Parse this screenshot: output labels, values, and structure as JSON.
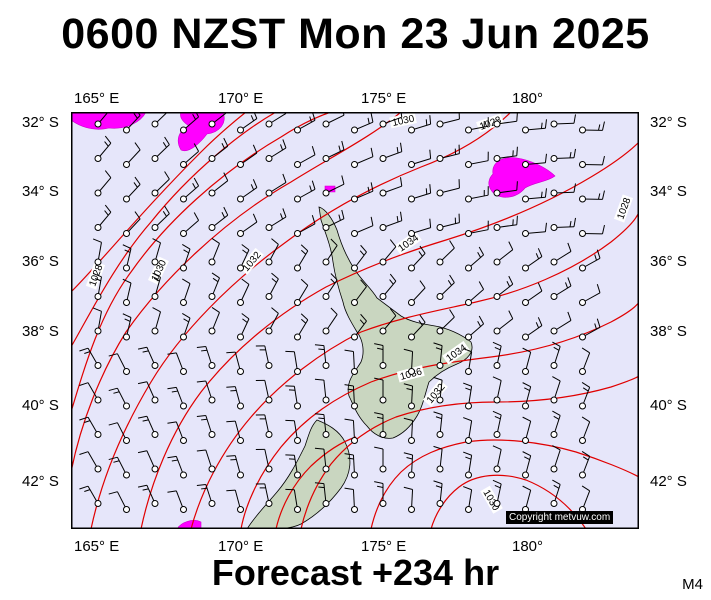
{
  "header": {
    "title": "0600 NZST Mon 23 Jun 2025"
  },
  "footer": {
    "subtitle": "Forecast +234 hr",
    "model": "M4"
  },
  "map": {
    "lon_labels": [
      "165° E",
      "170° E",
      "175° E",
      "180°"
    ],
    "lat_labels": [
      "32° S",
      "34° S",
      "36° S",
      "38° S",
      "40° S",
      "42° S"
    ],
    "isobar_labels": [
      "1030",
      "1028",
      "1028",
      "1030",
      "1032",
      "1034",
      "1036",
      "1034",
      "1032",
      "1030",
      "1026",
      "1026"
    ],
    "copyright": "Copyright metvuw.com",
    "colors": {
      "ocean": "#e6e6fa",
      "isobar": "#e00000",
      "precip": "#ff00ff",
      "land": "#c9d6c0"
    }
  }
}
